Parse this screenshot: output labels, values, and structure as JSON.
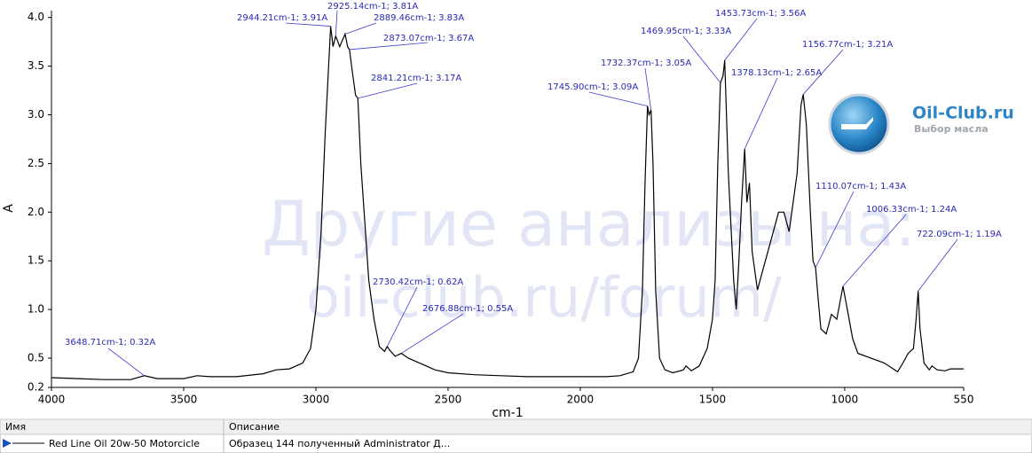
{
  "chart_data": {
    "type": "line",
    "xlabel": "cm-1",
    "ylabel": "A",
    "xlim": [
      4000,
      550
    ],
    "ylim": [
      0.2,
      4.07
    ],
    "xticks": [
      4000,
      3500,
      3000,
      2500,
      2000,
      1500,
      1000,
      550
    ],
    "yticks": [
      0.2,
      0.5,
      {
        "value": 1,
        "label": "1.0"
      },
      1.5,
      {
        "value": 2,
        "label": "2.0"
      },
      2.5,
      {
        "value": 3,
        "label": "3.0"
      },
      3.5,
      {
        "value": 4,
        "label": "4.0"
      }
    ],
    "series": [
      {
        "name": "Red Line Oil 20w-50 Motorcicle",
        "color": "#000000",
        "x": [
          4000,
          3900,
          3800,
          3700,
          3648.71,
          3600,
          3500,
          3450,
          3400,
          3300,
          3200,
          3150,
          3100,
          3050,
          3020,
          3000,
          2980,
          2965,
          2950,
          2944.21,
          2935,
          2925.14,
          2910,
          2889.46,
          2880,
          2873.07,
          2860,
          2850,
          2841.21,
          2830,
          2800,
          2780,
          2760,
          2740,
          2730.42,
          2720,
          2700,
          2676.88,
          2650,
          2600,
          2550,
          2500,
          2400,
          2300,
          2200,
          2100,
          2000,
          1900,
          1850,
          1800,
          1780,
          1765,
          1755,
          1745.9,
          1740,
          1732.37,
          1725,
          1715,
          1700,
          1680,
          1650,
          1610,
          1600,
          1580,
          1550,
          1520,
          1500,
          1490,
          1480,
          1469.95,
          1460,
          1453.73,
          1440,
          1420,
          1410,
          1400,
          1390,
          1378.13,
          1370,
          1360,
          1350,
          1330,
          1300,
          1270,
          1250,
          1230,
          1210,
          1180,
          1165,
          1156.77,
          1145,
          1130,
          1120,
          1110.07,
          1100,
          1090,
          1070,
          1050,
          1030,
          1006.33,
          990,
          970,
          950,
          900,
          850,
          800,
          780,
          760,
          740,
          730,
          722.09,
          715,
          700,
          680,
          670,
          650,
          620,
          600,
          560,
          550
        ],
        "values": [
          0.3,
          0.29,
          0.28,
          0.28,
          0.32,
          0.29,
          0.29,
          0.32,
          0.31,
          0.31,
          0.34,
          0.38,
          0.39,
          0.45,
          0.6,
          1.0,
          1.8,
          2.8,
          3.6,
          3.91,
          3.7,
          3.81,
          3.7,
          3.83,
          3.7,
          3.67,
          3.4,
          3.2,
          3.17,
          2.5,
          1.3,
          0.9,
          0.62,
          0.57,
          0.62,
          0.58,
          0.52,
          0.55,
          0.5,
          0.44,
          0.38,
          0.35,
          0.33,
          0.32,
          0.31,
          0.31,
          0.31,
          0.31,
          0.32,
          0.36,
          0.5,
          1.2,
          2.3,
          3.09,
          3.0,
          3.05,
          2.5,
          1.2,
          0.5,
          0.38,
          0.35,
          0.38,
          0.42,
          0.37,
          0.42,
          0.6,
          0.9,
          1.3,
          2.5,
          3.33,
          3.4,
          3.56,
          2.4,
          1.3,
          1.0,
          1.5,
          2.1,
          2.65,
          2.1,
          2.3,
          1.6,
          1.2,
          1.5,
          1.8,
          2.0,
          2.0,
          1.8,
          2.4,
          3.1,
          3.21,
          2.9,
          2.0,
          1.5,
          1.43,
          1.1,
          0.8,
          0.75,
          0.95,
          0.9,
          1.24,
          1.0,
          0.7,
          0.55,
          0.5,
          0.45,
          0.36,
          0.45,
          0.55,
          0.6,
          0.9,
          1.19,
          0.8,
          0.45,
          0.38,
          0.42,
          0.38,
          0.37,
          0.39,
          0.39,
          0.39
        ]
      }
    ],
    "annotations": [
      {
        "x": 3648.71,
        "y": 0.32,
        "label": "3648.71cm-1; 0.32A"
      },
      {
        "x": 2944.21,
        "y": 3.91,
        "label": "2944.21cm-1; 3.91A"
      },
      {
        "x": 2925.14,
        "y": 3.81,
        "label": "2925.14cm-1; 3.81A"
      },
      {
        "x": 2889.46,
        "y": 3.83,
        "label": "2889.46cm-1; 3.83A"
      },
      {
        "x": 2873.07,
        "y": 3.67,
        "label": "2873.07cm-1; 3.67A"
      },
      {
        "x": 2841.21,
        "y": 3.17,
        "label": "2841.21cm-1; 3.17A"
      },
      {
        "x": 2730.42,
        "y": 0.62,
        "label": "2730.42cm-1; 0.62A"
      },
      {
        "x": 2676.88,
        "y": 0.55,
        "label": "2676.88cm-1; 0.55A"
      },
      {
        "x": 1745.9,
        "y": 3.09,
        "label": "1745.90cm-1; 3.09A"
      },
      {
        "x": 1732.37,
        "y": 3.05,
        "label": "1732.37cm-1; 3.05A"
      },
      {
        "x": 1469.95,
        "y": 3.33,
        "label": "1469.95cm-1; 3.33A"
      },
      {
        "x": 1453.73,
        "y": 3.56,
        "label": "1453.73cm-1; 3.56A"
      },
      {
        "x": 1378.13,
        "y": 2.65,
        "label": "1378.13cm-1; 2.65A"
      },
      {
        "x": 1156.77,
        "y": 3.21,
        "label": "1156.77cm-1; 3.21A"
      },
      {
        "x": 1110.07,
        "y": 1.43,
        "label": "1110.07cm-1; 1.43A"
      },
      {
        "x": 1006.33,
        "y": 1.24,
        "label": "1006.33cm-1; 1.24A"
      },
      {
        "x": 722.09,
        "y": 1.19,
        "label": "722.09cm-1; 1.19A"
      }
    ]
  },
  "watermark": {
    "line1": "Другие анализы на:",
    "line2": "oil-club.ru/forum/"
  },
  "logo": {
    "title": "Oil-Club.ru",
    "subtitle": "Выбор масла"
  },
  "table": {
    "headers": [
      "Имя",
      "Описание"
    ],
    "rows": [
      [
        "Red Line Oil 20w-50 Motorcicle",
        "Образец 144 полученный Administrator Д..."
      ]
    ]
  }
}
